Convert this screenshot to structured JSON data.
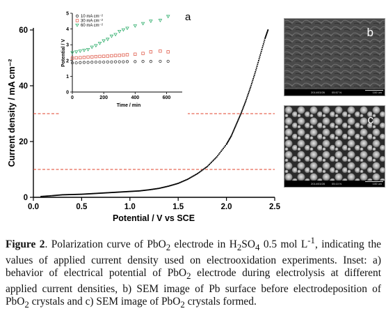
{
  "chart_data": [
    {
      "type": "scatter",
      "xlabel": "Potential / V vs SCE",
      "ylabel": "Current density / mA cm⁻²",
      "xlim": [
        0,
        2.5
      ],
      "ylim": [
        0,
        60
      ],
      "xticks": [
        "0.0",
        "0.5",
        "1.0",
        "1.5",
        "2.0",
        "2.5"
      ],
      "yticks": [
        "0",
        "20",
        "40",
        "60"
      ],
      "reference_lines": [
        30,
        10
      ],
      "series": [
        {
          "x": [
            0.08,
            0.2,
            0.3,
            0.4,
            0.5,
            0.6,
            0.7,
            0.8,
            0.9,
            1.0,
            1.1,
            1.2,
            1.3,
            1.4,
            1.5,
            1.6,
            1.7,
            1.8,
            1.9,
            2.0,
            2.05,
            2.1,
            2.15,
            2.2,
            2.25,
            2.3,
            2.35,
            2.4,
            2.43
          ],
          "y": [
            0.3,
            0.6,
            0.9,
            1.0,
            1.1,
            1.3,
            1.5,
            1.7,
            1.9,
            2.1,
            2.3,
            2.7,
            3.2,
            4.0,
            5.0,
            6.5,
            8.5,
            11.0,
            14.5,
            19.0,
            22.0,
            26.0,
            30.0,
            34.5,
            39.5,
            45.0,
            51.0,
            57.0,
            60.0
          ]
        }
      ]
    },
    {
      "type": "scatter",
      "label": "a",
      "xlabel": "Time / min",
      "ylabel": "Potential / V",
      "xlim": [
        0,
        700
      ],
      "ylim": [
        0,
        5
      ],
      "xticks": [
        "0",
        "200",
        "400",
        "600"
      ],
      "yticks": [
        "0",
        "1",
        "2",
        "3",
        "4",
        "5"
      ],
      "series": [
        {
          "name": "10 mA cm⁻²",
          "color": "#333333",
          "x": [
            0,
            25,
            50,
            75,
            100,
            125,
            150,
            175,
            200,
            225,
            250,
            275,
            300,
            325,
            350,
            400,
            450,
            500,
            560,
            610
          ],
          "y": [
            1.85,
            1.85,
            1.87,
            1.88,
            1.88,
            1.89,
            1.9,
            1.9,
            1.9,
            1.91,
            1.91,
            1.92,
            1.92,
            1.92,
            1.93,
            1.93,
            1.94,
            1.94,
            1.95,
            1.95
          ]
        },
        {
          "name": "30 mA cm⁻²",
          "color": "#e06050",
          "x": [
            0,
            25,
            50,
            75,
            100,
            125,
            150,
            175,
            200,
            225,
            250,
            275,
            300,
            325,
            350,
            400,
            450,
            500,
            560,
            610
          ],
          "y": [
            2.15,
            2.17,
            2.18,
            2.2,
            2.22,
            2.23,
            2.25,
            2.26,
            2.27,
            2.28,
            2.3,
            2.32,
            2.33,
            2.35,
            2.37,
            2.4,
            2.45,
            2.55,
            2.6,
            2.55
          ]
        },
        {
          "name": "60 mA cm⁻²",
          "color": "#35b070",
          "x": [
            0,
            25,
            50,
            75,
            100,
            125,
            150,
            175,
            200,
            225,
            250,
            275,
            300,
            325,
            350,
            400,
            450,
            500,
            560,
            610
          ],
          "y": [
            2.5,
            2.55,
            2.6,
            2.65,
            2.7,
            2.85,
            2.95,
            3.1,
            3.25,
            3.35,
            3.55,
            3.65,
            3.85,
            3.95,
            4.05,
            4.2,
            4.35,
            4.5,
            4.55,
            4.8
          ]
        }
      ]
    }
  ],
  "sem": {
    "b": {
      "label": "b",
      "date": "2014/03/26",
      "time": "05:57 N",
      "scale": "100 um"
    },
    "c": {
      "label": "c",
      "date": "2014/03/28",
      "time": "05:10 N",
      "scale": "100 um"
    }
  },
  "caption": {
    "figure_label": "Figure 2",
    "t1": ". Polarization curve of PbO",
    "t2": " electrode in H",
    "t3": "SO",
    "t4": " 0.5 mol L",
    "t5": ", indicating the values of applied current density used on electrooxidation experiments. Inset: a) behavior of electrical potential of PbO",
    "t6": " electrode during electrolysis at different applied current densities, b) SEM image of Pb surface before electrodeposition of PbO",
    "t7": " crystals and c) SEM image of PbO",
    "t8": " crystals formed.",
    "s2": "2",
    "s4": "4",
    "sup": "-1"
  }
}
